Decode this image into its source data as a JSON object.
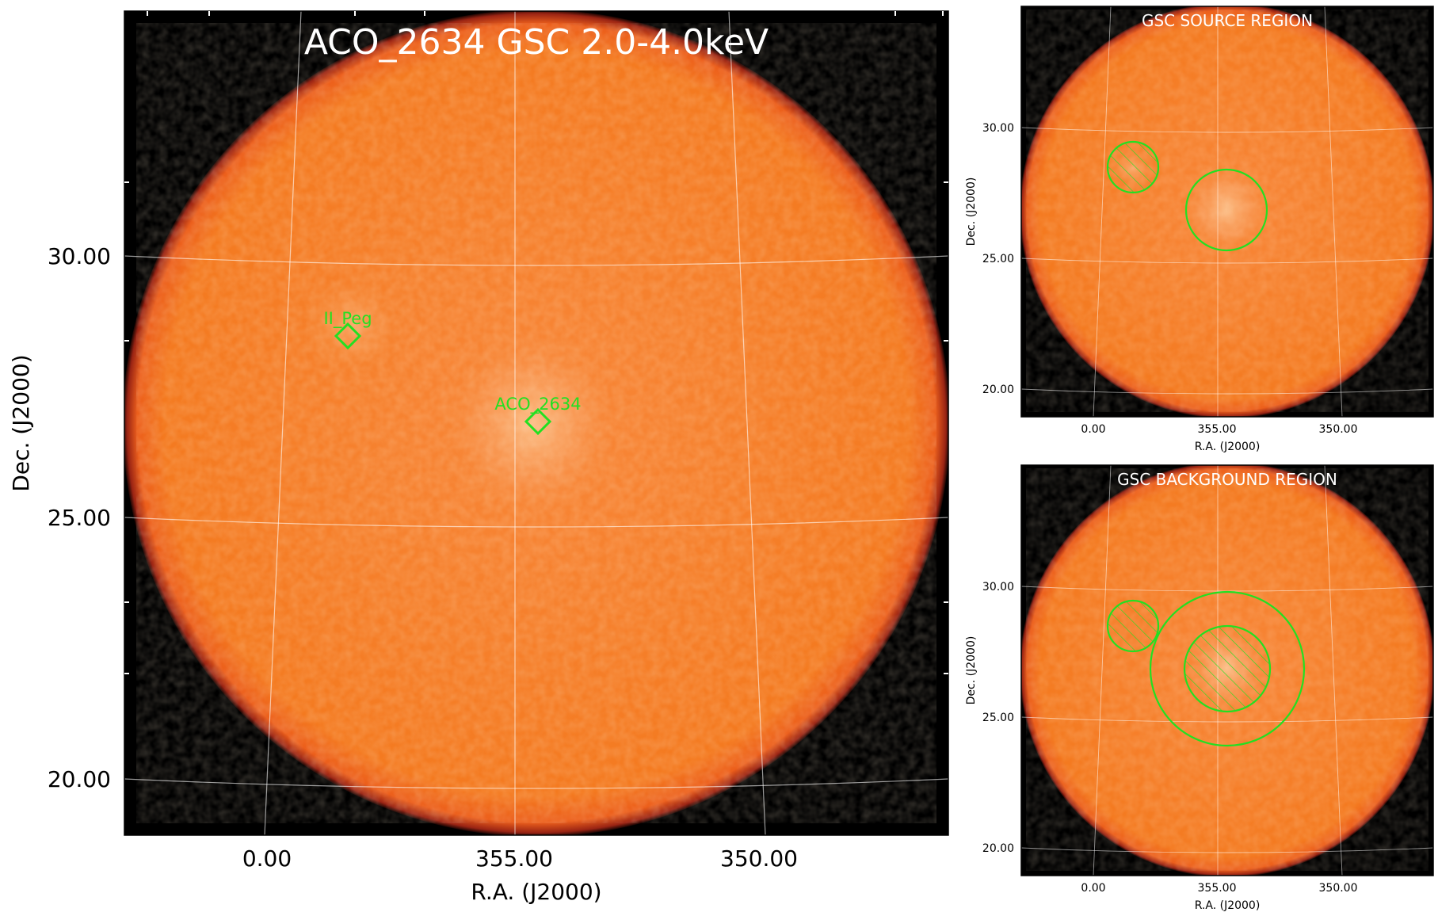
{
  "main_panel": {
    "title": "ACO_2634 GSC 2.0-4.0keV",
    "x_axis_label": "R.A. (J2000)",
    "y_axis_label": "Dec. (J2000)",
    "x_ticks": [
      "0.00",
      "355.00",
      "350.00"
    ],
    "y_ticks": [
      "30.00",
      "25.00",
      "20.00"
    ],
    "sources": [
      {
        "name": "II_Peg",
        "marker": "diamond-icon"
      },
      {
        "name": "ACO_2634",
        "marker": "diamond-icon"
      }
    ]
  },
  "source_panel": {
    "title": "GSC SOURCE REGION",
    "x_axis_label": "R.A. (J2000)",
    "y_axis_label": "Dec. (J2000)",
    "x_ticks": [
      "0.00",
      "355.00",
      "350.00"
    ],
    "y_ticks": [
      "30.00",
      "25.00",
      "20.00"
    ]
  },
  "background_panel": {
    "title": "GSC BACKGROUND REGION",
    "x_axis_label": "R.A. (J2000)",
    "y_axis_label": "Dec. (J2000)",
    "x_ticks": [
      "0.00",
      "355.00",
      "350.00"
    ],
    "y_ticks": [
      "30.00",
      "25.00",
      "20.00"
    ]
  },
  "colors": {
    "background_sky": "#000000",
    "field_orange": "#f47a20",
    "field_edge": "#c0361a",
    "region_green": "#22e022",
    "grid": "#ffffff"
  }
}
